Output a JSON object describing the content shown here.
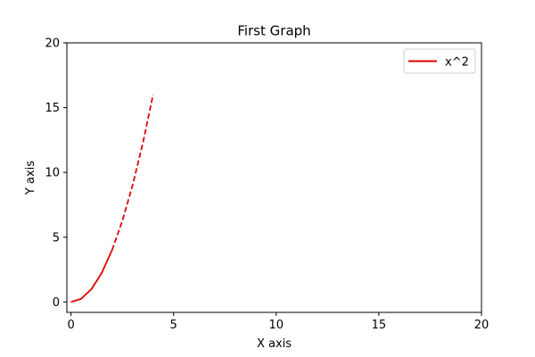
{
  "chart_data": {
    "type": "line",
    "title": "First Graph",
    "xlabel": "X axis",
    "ylabel": "Y axis",
    "xlim": [
      -0.2,
      20
    ],
    "ylim": [
      -0.8,
      20
    ],
    "xticks": [
      0,
      5,
      10,
      15,
      20
    ],
    "yticks": [
      0,
      5,
      10,
      15,
      20
    ],
    "grid": false,
    "legend": {
      "position": "top-right"
    },
    "series": [
      {
        "name": "x^2",
        "color": "#e00000",
        "legend_style": "solid",
        "segments": [
          {
            "style": "solid",
            "x": [
              0,
              0.5,
              1,
              1.5,
              2
            ],
            "y": [
              0,
              0.25,
              1,
              2.25,
              4
            ]
          },
          {
            "style": "dashed",
            "x": [
              2,
              2.5,
              3,
              3.5,
              4
            ],
            "y": [
              4,
              6.25,
              9,
              12.25,
              16
            ]
          }
        ]
      }
    ]
  }
}
